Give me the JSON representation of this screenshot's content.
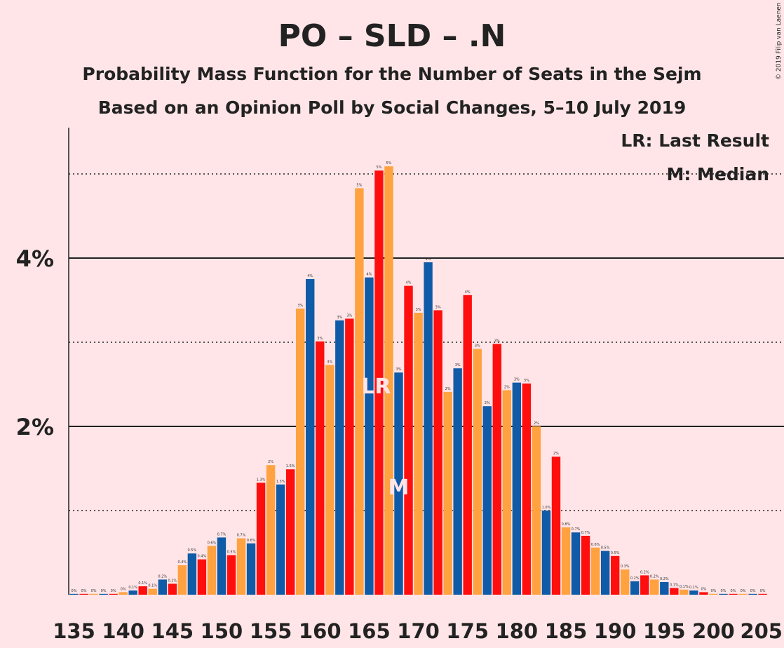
{
  "chart_data": {
    "type": "bar",
    "title": "PO – SLD – .N",
    "subtitle": "Probability Mass Function for the Number of Seats in the Sejm",
    "subtitle2": "Based on an Opinion Poll by Social Changes, 5–10 July 2019",
    "copyright": "© 2019 Filip van Laenen",
    "legend": {
      "last_result": "LR: Last Result",
      "median": "M: Median",
      "placement": "top-right"
    },
    "x_start": 135,
    "x_end": 205,
    "x_ticks": [
      "135",
      "140",
      "145",
      "150",
      "155",
      "160",
      "165",
      "170",
      "175",
      "180",
      "185",
      "190",
      "195",
      "200",
      "205"
    ],
    "y_ticks": [
      {
        "value": 2,
        "label": "2%"
      },
      {
        "value": 4,
        "label": "4%"
      }
    ],
    "ylim": [
      0,
      5.55
    ],
    "grid": {
      "solid": [
        2,
        4
      ],
      "dotted": [
        1,
        3,
        5
      ]
    },
    "colors": [
      "#0F5BA8",
      "#FF0E0E",
      "#FFA23F"
    ],
    "values": [
      0.01,
      0.01,
      0.01,
      0.01,
      0.01,
      0.03,
      0.05,
      0.1,
      0.07,
      0.18,
      0.13,
      0.35,
      0.49,
      0.42,
      0.58,
      0.68,
      0.47,
      0.67,
      0.61,
      1.33,
      1.54,
      1.31,
      1.49,
      3.4,
      3.75,
      3.01,
      2.73,
      3.26,
      3.28,
      4.83,
      3.77,
      5.04,
      5.09,
      2.64,
      3.67,
      3.35,
      3.95,
      3.38,
      2.41,
      2.69,
      3.56,
      2.92,
      2.24,
      2.98,
      2.43,
      2.52,
      2.51,
      2.0,
      1.0,
      1.64,
      0.8,
      0.74,
      0.7,
      0.56,
      0.52,
      0.46,
      0.3,
      0.16,
      0.23,
      0.18,
      0.15,
      0.08,
      0.06,
      0.05,
      0.03,
      0.01,
      0.01,
      0.01,
      0.01,
      0.01,
      0.01
    ],
    "labels": [
      "0%",
      "0%",
      "0%",
      "0%",
      "0%",
      "0%",
      "0.1%",
      "0.1%",
      "0.1%",
      "0.2%",
      "0.1%",
      "0.4%",
      "0.5%",
      "0.4%",
      "0.6%",
      "0.7%",
      "0.5%",
      "0.7%",
      "0.6%",
      "1.3%",
      "2%",
      "1.3%",
      "1.5%",
      "3%",
      "4%",
      "3%",
      "3%",
      "3%",
      "3%",
      "5%",
      "4%",
      "5%",
      "5%",
      "3%",
      "4%",
      "3%",
      "4%",
      "3%",
      "2%",
      "3%",
      "4%",
      "3%",
      "2%",
      "3%",
      "2%",
      "3%",
      "3%",
      "2%",
      "1.0%",
      "2%",
      "0.8%",
      "0.7%",
      "0.7%",
      "0.6%",
      "0.5%",
      "0.5%",
      "0.3%",
      "0.2%",
      "0.2%",
      "0.2%",
      "0.2%",
      "0.1%",
      "0.1%",
      "0.1%",
      "0%",
      "0%",
      "0%",
      "0%",
      "0%",
      "0%",
      "0%"
    ],
    "last_result": {
      "seat": 166,
      "label": "LR"
    },
    "median": {
      "seat": 168,
      "label": "M"
    }
  }
}
